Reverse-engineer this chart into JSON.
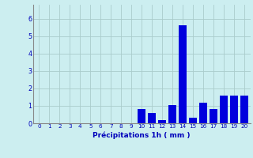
{
  "hours": [
    0,
    1,
    2,
    3,
    4,
    5,
    6,
    7,
    8,
    9,
    10,
    11,
    12,
    13,
    14,
    15,
    16,
    17,
    18,
    19,
    20
  ],
  "values": [
    0,
    0,
    0,
    0,
    0,
    0,
    0,
    0,
    0,
    0,
    0.8,
    0.6,
    0.2,
    1.05,
    5.6,
    0.3,
    1.2,
    0.8,
    1.6,
    1.6,
    1.6
  ],
  "bar_color": "#0000dd",
  "background_color": "#cceef0",
  "grid_color": "#aacccc",
  "xlabel": "Précipitations 1h ( mm )",
  "xlabel_color": "#0000bb",
  "tick_color": "#0000bb",
  "ylim": [
    0,
    6.8
  ],
  "yticks": [
    0,
    1,
    2,
    3,
    4,
    5,
    6
  ],
  "xlim": [
    -0.6,
    20.6
  ]
}
